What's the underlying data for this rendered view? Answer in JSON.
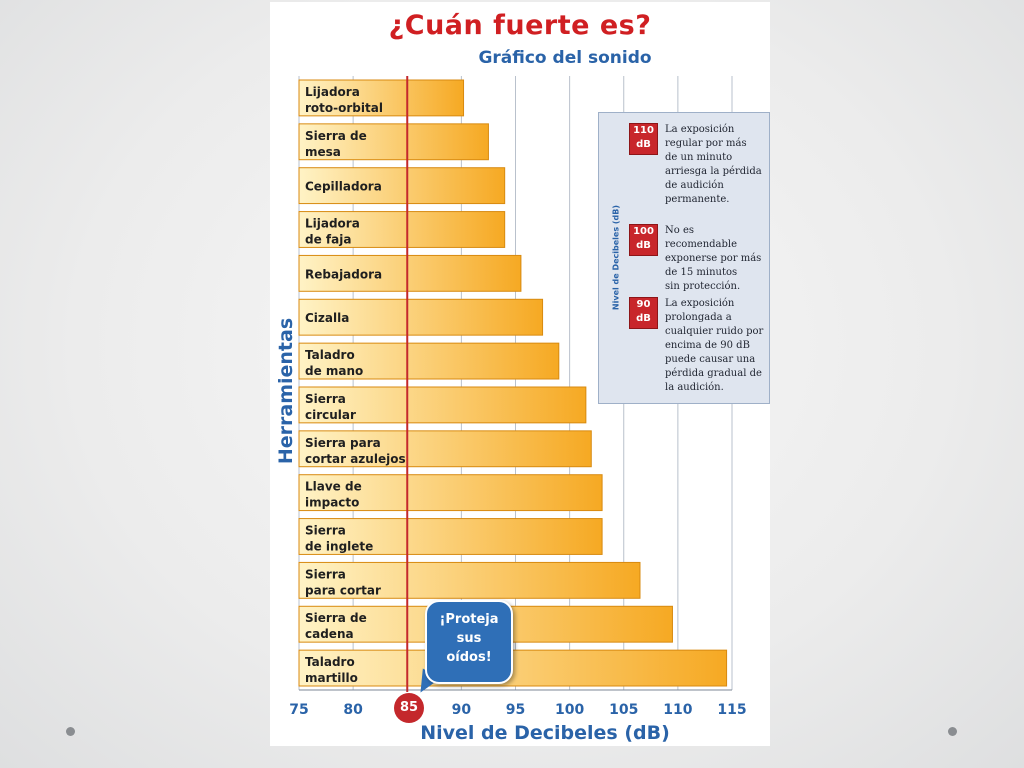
{
  "slide": {
    "nav_left_icon": "bullet-dot",
    "nav_right_icon": "bullet-dot"
  },
  "colors": {
    "title": "#d01f22",
    "accent_blue": "#2a63a8",
    "bar_start": "#fff3c6",
    "bar_end": "#f6a923",
    "threshold_line": "#c4282c",
    "legend_bg": "#dfe5ef",
    "callout_bg": "#2f6fb7"
  },
  "chart_data": {
    "type": "bar",
    "orientation": "horizontal",
    "title": "¿Cuán fuerte es?",
    "subtitle": "Gráfico del sonido",
    "xlabel": "Nivel de Decibeles (dB)",
    "ylabel": "Herramientas",
    "xlim": [
      75,
      115
    ],
    "xticks": [
      75,
      80,
      85,
      90,
      95,
      100,
      105,
      110,
      115
    ],
    "grid": true,
    "categories": [
      [
        "Lijadora",
        "roto-orbital"
      ],
      [
        "Sierra de",
        "mesa"
      ],
      [
        "Cepilladora"
      ],
      [
        "Lijadora",
        "de faja"
      ],
      [
        "Rebajadora"
      ],
      [
        "Cizalla"
      ],
      [
        "Taladro",
        "de mano"
      ],
      [
        "Sierra",
        "circular"
      ],
      [
        "Sierra para",
        "cortar azulejos"
      ],
      [
        "Llave de",
        "impacto"
      ],
      [
        "Sierra",
        "de inglete"
      ],
      [
        "Sierra",
        "para cortar"
      ],
      [
        "Sierra de",
        "cadena"
      ],
      [
        "Taladro",
        "martillo"
      ]
    ],
    "values": [
      90.2,
      92.5,
      94,
      94,
      95.5,
      97.5,
      99,
      101.5,
      102,
      103,
      103,
      106.5,
      109.5,
      114.5
    ],
    "threshold": {
      "value": 85,
      "label": "85"
    },
    "callout": {
      "lines": [
        "¡Proteja",
        "sus",
        "oídos!"
      ]
    },
    "legend": {
      "axis_label": "Nivel de Decibeles (dB)",
      "items": [
        {
          "badge": [
            "110",
            "dB"
          ],
          "text": [
            "La exposición",
            "regular por más",
            "de un minuto",
            "arriesga la pérdida",
            "de audición",
            "permanente."
          ]
        },
        {
          "badge": [
            "100",
            "dB"
          ],
          "text": [
            "No es recomendable",
            "exponerse por más",
            "de 15 minutos",
            "sin protección."
          ]
        },
        {
          "badge": [
            "90",
            "dB"
          ],
          "text": [
            "La exposición",
            "prolongada a",
            "cualquier ruido por",
            "encima de 90 dB",
            "puede causar una",
            "pérdida gradual de",
            "la audición."
          ]
        }
      ]
    }
  }
}
